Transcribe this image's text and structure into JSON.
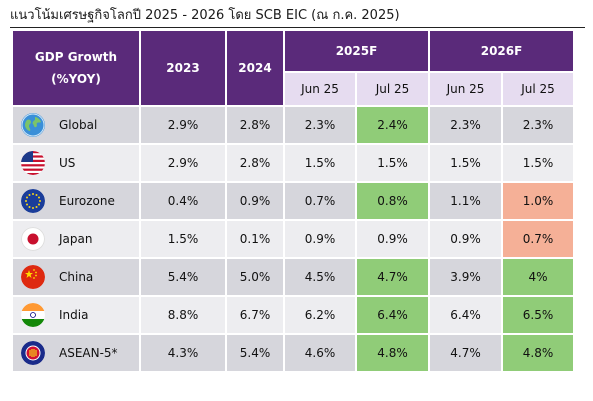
{
  "title": "แนวโน้มเศรษฐกิจโลกปี 2025 - 2026 โดย SCB EIC (ณ ก.ค. 2025)",
  "header": {
    "metric": "GDP Growth\n(%YOY)",
    "y2023": "2023",
    "y2024": "2024",
    "f2025": "2025F",
    "f2026": "2026F",
    "jun25": "Jun 25",
    "jul25": "Jul 25"
  },
  "colors": {
    "header_purple": "#5a2a7a",
    "sub_header": "#e6dcf0",
    "upgrade_green": "#90cc78",
    "downgrade_salmon": "#f5b097"
  },
  "rows": [
    {
      "country": "Global",
      "flag": "globe-icon",
      "v2023": "2.9%",
      "v2024": "2.8%",
      "f25_jun": "2.3%",
      "f25_jul": "2.4%",
      "f26_jun": "2.3%",
      "f26_jul": "2.3%",
      "hl": [
        "",
        "",
        "",
        "green",
        "",
        ""
      ]
    },
    {
      "country": "US",
      "flag": "us-flag-icon",
      "v2023": "2.9%",
      "v2024": "2.8%",
      "f25_jun": "1.5%",
      "f25_jul": "1.5%",
      "f26_jun": "1.5%",
      "f26_jul": "1.5%",
      "hl": [
        "",
        "",
        "",
        "",
        "",
        ""
      ]
    },
    {
      "country": "Eurozone",
      "flag": "eu-flag-icon",
      "v2023": "0.4%",
      "v2024": "0.9%",
      "f25_jun": "0.7%",
      "f25_jul": "0.8%",
      "f26_jun": "1.1%",
      "f26_jul": "1.0%",
      "hl": [
        "",
        "",
        "",
        "green",
        "",
        "salmon"
      ]
    },
    {
      "country": "Japan",
      "flag": "japan-flag-icon",
      "v2023": "1.5%",
      "v2024": "0.1%",
      "f25_jun": "0.9%",
      "f25_jul": "0.9%",
      "f26_jun": "0.9%",
      "f26_jul": "0.7%",
      "hl": [
        "",
        "",
        "",
        "",
        "",
        "salmon"
      ]
    },
    {
      "country": "China",
      "flag": "china-flag-icon",
      "v2023": "5.4%",
      "v2024": "5.0%",
      "f25_jun": "4.5%",
      "f25_jul": "4.7%",
      "f26_jun": "3.9%",
      "f26_jul": "4%",
      "hl": [
        "",
        "",
        "",
        "green",
        "",
        "green"
      ]
    },
    {
      "country": "India",
      "flag": "india-flag-icon",
      "v2023": "8.8%",
      "v2024": "6.7%",
      "f25_jun": "6.2%",
      "f25_jul": "6.4%",
      "f26_jun": "6.4%",
      "f26_jul": "6.5%",
      "hl": [
        "",
        "",
        "",
        "green",
        "",
        "green"
      ]
    },
    {
      "country": "ASEAN-5*",
      "flag": "asean-flag-icon",
      "v2023": "4.3%",
      "v2024": "5.4%",
      "f25_jun": "4.6%",
      "f25_jul": "4.8%",
      "f26_jun": "4.7%",
      "f26_jul": "4.8%",
      "hl": [
        "",
        "",
        "",
        "green",
        "",
        "green"
      ]
    }
  ]
}
